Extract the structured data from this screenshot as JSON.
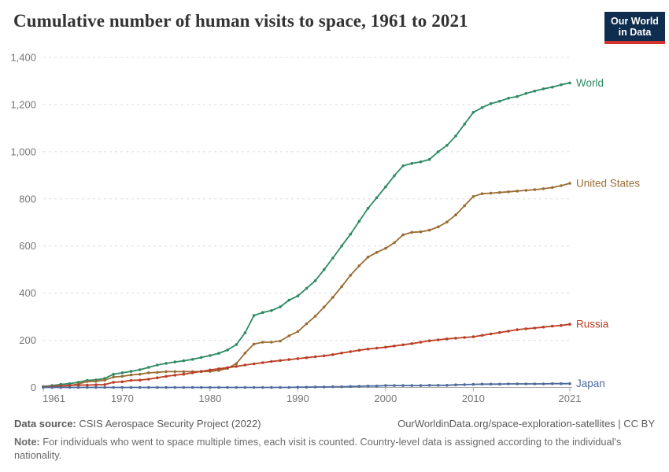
{
  "header": {
    "title": "Cumulative number of human visits to space, 1961 to 2021",
    "logo_text": "Our World\nin Data",
    "logo_bg_color": "#0f2d4e",
    "logo_accent_color": "#d2332c"
  },
  "chart_data": {
    "type": "line",
    "title": "Cumulative number of human visits to space, 1961 to 2021",
    "xlabel": "",
    "ylabel": "",
    "grid": "horizontal dashed",
    "legend_position": "line-end labels",
    "xlim": [
      1961,
      2021
    ],
    "ylim": [
      0,
      1400
    ],
    "xticks": [
      1961,
      1970,
      1980,
      1990,
      2000,
      2010,
      2021
    ],
    "yticks": [
      0,
      200,
      400,
      600,
      800,
      1000,
      1200,
      1400
    ],
    "ytick_labels": [
      "0",
      "200",
      "400",
      "600",
      "800",
      "1,000",
      "1,200",
      "1,400"
    ],
    "x": [
      1961,
      1962,
      1963,
      1964,
      1965,
      1966,
      1967,
      1968,
      1969,
      1970,
      1971,
      1972,
      1973,
      1974,
      1975,
      1976,
      1977,
      1978,
      1979,
      1980,
      1981,
      1982,
      1983,
      1984,
      1985,
      1986,
      1987,
      1988,
      1989,
      1990,
      1991,
      1992,
      1993,
      1994,
      1995,
      1996,
      1997,
      1998,
      1999,
      2000,
      2001,
      2002,
      2003,
      2004,
      2005,
      2006,
      2007,
      2008,
      2009,
      2010,
      2011,
      2012,
      2013,
      2014,
      2015,
      2016,
      2017,
      2018,
      2019,
      2020,
      2021
    ],
    "series": [
      {
        "name": "World",
        "color": "#2e8a62",
        "values": [
          4,
          8,
          13,
          16,
          22,
          30,
          32,
          38,
          56,
          62,
          68,
          75,
          85,
          95,
          102,
          108,
          113,
          119,
          127,
          135,
          145,
          159,
          182,
          232,
          305,
          318,
          326,
          342,
          370,
          388,
          420,
          453,
          500,
          549,
          600,
          650,
          705,
          760,
          805,
          851,
          898,
          940,
          950,
          957,
          967,
          1000,
          1027,
          1067,
          1117,
          1167,
          1187,
          1204,
          1214,
          1227,
          1234,
          1247,
          1257,
          1267,
          1274,
          1284,
          1292
        ]
      },
      {
        "name": "United States",
        "color": "#9a6d35",
        "values": [
          2,
          5,
          6,
          7,
          15,
          25,
          26,
          31,
          44,
          47,
          53,
          56,
          62,
          64,
          67,
          67,
          67,
          67,
          67,
          68,
          72,
          81,
          101,
          146,
          184,
          192,
          192,
          197,
          219,
          237,
          270,
          302,
          341,
          382,
          428,
          476,
          516,
          553,
          573,
          590,
          614,
          647,
          658,
          660,
          667,
          681,
          702,
          732,
          771,
          810,
          822,
          824,
          827,
          830,
          833,
          836,
          839,
          843,
          848,
          856,
          866
        ]
      },
      {
        "name": "Russia",
        "color": "#bb3e25",
        "values": [
          2,
          4,
          6,
          9,
          10,
          10,
          11,
          12,
          22,
          24,
          30,
          31,
          35,
          41,
          47,
          52,
          56,
          62,
          68,
          74,
          79,
          84,
          89,
          95,
          100,
          105,
          110,
          114,
          118,
          122,
          126,
          130,
          134,
          139,
          146,
          152,
          158,
          163,
          167,
          171,
          176,
          181,
          186,
          192,
          198,
          202,
          206,
          209,
          212,
          215,
          221,
          227,
          233,
          239,
          245,
          249,
          252,
          256,
          260,
          263,
          268
        ]
      },
      {
        "name": "Japan",
        "color": "#4c6a9c",
        "values": [
          0,
          0,
          0,
          0,
          0,
          0,
          0,
          0,
          0,
          0,
          0,
          0,
          0,
          0,
          0,
          0,
          0,
          0,
          0,
          0,
          0,
          0,
          0,
          0,
          0,
          0,
          0,
          0,
          0,
          1,
          1,
          2,
          2,
          3,
          3,
          4,
          5,
          6,
          6,
          8,
          8,
          8,
          8,
          8,
          9,
          9,
          9,
          11,
          12,
          13,
          14,
          14,
          14,
          15,
          15,
          15,
          15,
          15,
          16,
          16,
          16
        ]
      }
    ]
  },
  "footer": {
    "datasource_label": "Data source:",
    "datasource_value": " CSIS Aerospace Security Project (2022)",
    "link": "OurWorldinData.org/space-exploration-satellites | CC BY",
    "note_label": "Note:",
    "note_value": " For individuals who went to space multiple times, each visit is counted. Country-level data is assigned according to the individual's nationality."
  },
  "style": {
    "axis_text_color": "#767676",
    "gridline_color": "#dcdcdc",
    "axis_line_color": "#a5a5a5"
  }
}
